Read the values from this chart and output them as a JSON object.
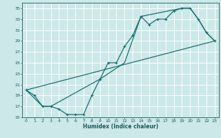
{
  "xlabel": "Humidex (Indice chaleur)",
  "bg_color": "#cce8e8",
  "grid_color": "#ffffff",
  "line_color": "#1a6e6e",
  "xlim": [
    -0.5,
    23.5
  ],
  "ylim": [
    15,
    36
  ],
  "yticks": [
    15,
    17,
    19,
    21,
    23,
    25,
    27,
    29,
    31,
    33,
    35
  ],
  "xticks": [
    0,
    1,
    2,
    3,
    4,
    5,
    6,
    7,
    8,
    9,
    10,
    11,
    12,
    13,
    14,
    15,
    16,
    17,
    18,
    19,
    20,
    21,
    22,
    23
  ],
  "line1_x": [
    0,
    1,
    2,
    3,
    4,
    5,
    6,
    7,
    8,
    9,
    10,
    11,
    12,
    13,
    14,
    15,
    16,
    17,
    18,
    19,
    20,
    21,
    22,
    23
  ],
  "line1_y": [
    20,
    19,
    17,
    17,
    16.5,
    15.5,
    15.5,
    15.5,
    19,
    22,
    25,
    25,
    28,
    30,
    33.5,
    32,
    33,
    33,
    34.5,
    35,
    35,
    33,
    30.5,
    29
  ],
  "line2_x": [
    0,
    2,
    3,
    9,
    12,
    14,
    19,
    20,
    21,
    22,
    23
  ],
  "line2_y": [
    20,
    17,
    17,
    22,
    25,
    33.5,
    35,
    35,
    33,
    30.5,
    29
  ],
  "line3_x": [
    0,
    23
  ],
  "line3_y": [
    20,
    29
  ]
}
